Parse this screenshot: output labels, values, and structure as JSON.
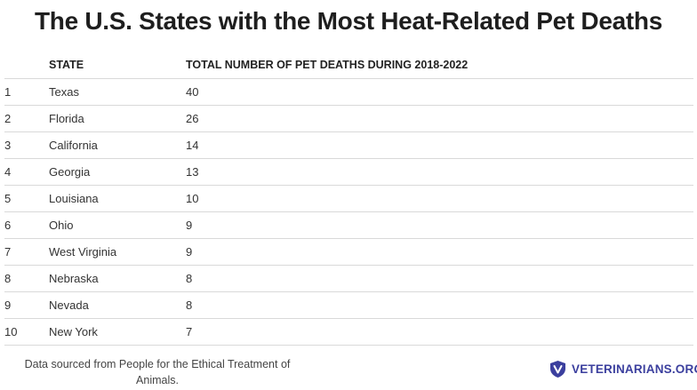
{
  "title": "The U.S. States with the Most Heat-Related Pet Deaths",
  "table": {
    "headers": {
      "rank": "",
      "state": "STATE",
      "deaths": "TOTAL NUMBER OF PET DEATHS DURING 2018-2022"
    },
    "rows": [
      {
        "rank": "1",
        "state": "Texas",
        "deaths": "40"
      },
      {
        "rank": "2",
        "state": "Florida",
        "deaths": "26"
      },
      {
        "rank": "3",
        "state": "California",
        "deaths": "14"
      },
      {
        "rank": "4",
        "state": "Georgia",
        "deaths": "13"
      },
      {
        "rank": "5",
        "state": "Louisiana",
        "deaths": "10"
      },
      {
        "rank": "6",
        "state": "Ohio",
        "deaths": "9"
      },
      {
        "rank": "7",
        "state": "West Virginia",
        "deaths": "9"
      },
      {
        "rank": "8",
        "state": "Nebraska",
        "deaths": "8"
      },
      {
        "rank": "9",
        "state": "Nevada",
        "deaths": "8"
      },
      {
        "rank": "10",
        "state": "New York",
        "deaths": "7"
      }
    ]
  },
  "footer": {
    "source": "Data sourced from People for the Ethical Treatment of Animals.",
    "brand": "VETERINARIANS.ORG",
    "brand_icon": "v-shield-logo-icon",
    "brand_color": "#3b3f9e"
  }
}
